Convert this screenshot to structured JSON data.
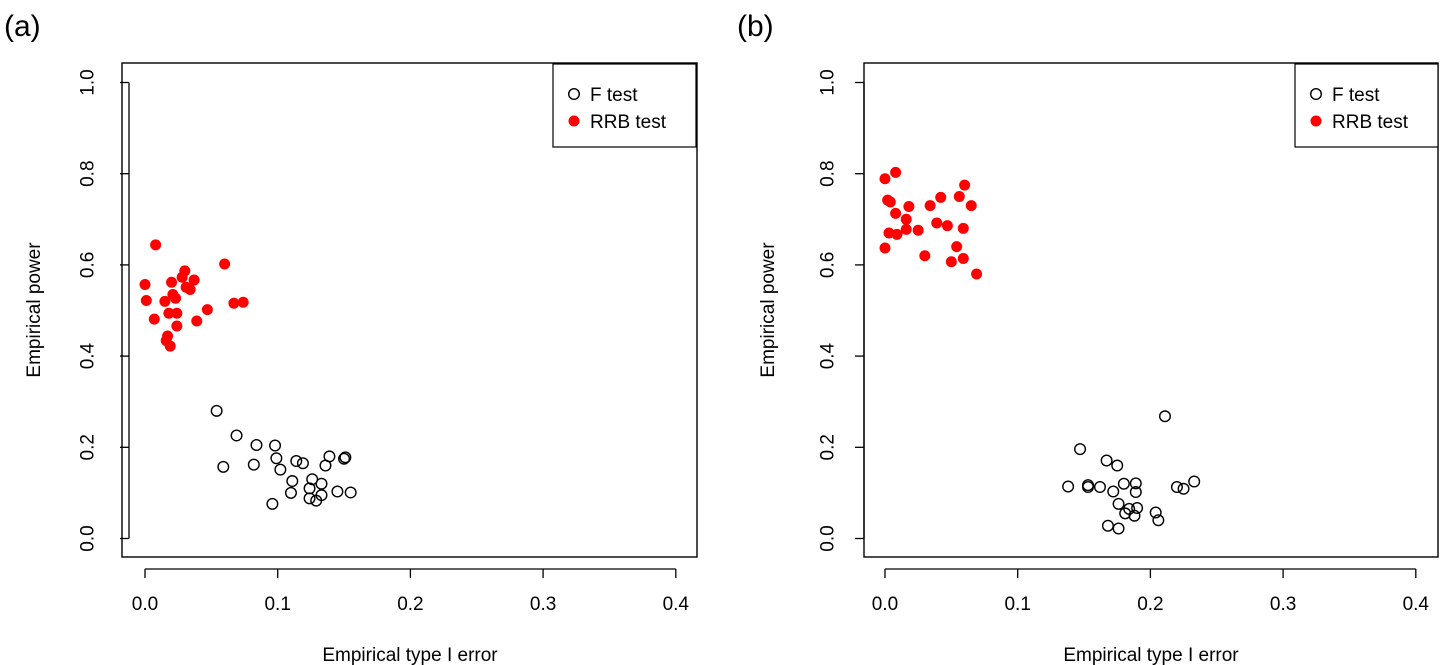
{
  "chart_data": [
    {
      "type": "scatter",
      "panel_label": "(a)",
      "xlabel": "Empirical type I error",
      "ylabel": "Empirical power",
      "xlim": [
        0.0,
        0.4
      ],
      "ylim": [
        0.0,
        1.0
      ],
      "xticks": [
        "0.0",
        "0.1",
        "0.2",
        "0.3",
        "0.4"
      ],
      "yticks": [
        "0.0",
        "0.2",
        "0.4",
        "0.6",
        "0.8",
        "1.0"
      ],
      "grid": false,
      "legend_position": "top-right",
      "series": [
        {
          "name": "F test",
          "marker": "open-circle",
          "color": "#000000",
          "points": [
            [
              0.054,
              0.28
            ],
            [
              0.069,
              0.226
            ],
            [
              0.084,
              0.205
            ],
            [
              0.098,
              0.204
            ],
            [
              0.059,
              0.157
            ],
            [
              0.082,
              0.162
            ],
            [
              0.099,
              0.176
            ],
            [
              0.114,
              0.17
            ],
            [
              0.119,
              0.165
            ],
            [
              0.139,
              0.18
            ],
            [
              0.15,
              0.175
            ],
            [
              0.151,
              0.178
            ],
            [
              0.136,
              0.16
            ],
            [
              0.102,
              0.151
            ],
            [
              0.111,
              0.126
            ],
            [
              0.126,
              0.13
            ],
            [
              0.133,
              0.12
            ],
            [
              0.124,
              0.11
            ],
            [
              0.11,
              0.1
            ],
            [
              0.145,
              0.103
            ],
            [
              0.155,
              0.101
            ],
            [
              0.133,
              0.095
            ],
            [
              0.124,
              0.088
            ],
            [
              0.129,
              0.083
            ],
            [
              0.096,
              0.076
            ]
          ]
        },
        {
          "name": "RRB test",
          "marker": "filled-circle",
          "color": "#ff0000",
          "points": [
            [
              0.008,
              0.644
            ],
            [
              0.06,
              0.602
            ],
            [
              0.03,
              0.587
            ],
            [
              0.028,
              0.573
            ],
            [
              0.037,
              0.567
            ],
            [
              0.02,
              0.562
            ],
            [
              0.0,
              0.557
            ],
            [
              0.031,
              0.551
            ],
            [
              0.034,
              0.546
            ],
            [
              0.021,
              0.535
            ],
            [
              0.023,
              0.527
            ],
            [
              0.001,
              0.522
            ],
            [
              0.015,
              0.52
            ],
            [
              0.067,
              0.516
            ],
            [
              0.074,
              0.518
            ],
            [
              0.047,
              0.502
            ],
            [
              0.018,
              0.494
            ],
            [
              0.024,
              0.494
            ],
            [
              0.007,
              0.481
            ],
            [
              0.039,
              0.477
            ],
            [
              0.024,
              0.466
            ],
            [
              0.017,
              0.444
            ],
            [
              0.016,
              0.434
            ],
            [
              0.019,
              0.422
            ]
          ]
        }
      ]
    },
    {
      "type": "scatter",
      "panel_label": "(b)",
      "xlabel": "Empirical type I error",
      "ylabel": "Empirical power",
      "xlim": [
        0.0,
        0.4
      ],
      "ylim": [
        0.0,
        1.0
      ],
      "xticks": [
        "0.0",
        "0.1",
        "0.2",
        "0.3",
        "0.4"
      ],
      "yticks": [
        "0.0",
        "0.2",
        "0.4",
        "0.6",
        "0.8",
        "1.0"
      ],
      "grid": false,
      "legend_position": "top-right",
      "series": [
        {
          "name": "F test",
          "marker": "open-circle",
          "color": "#000000",
          "points": [
            [
              0.211,
              0.268
            ],
            [
              0.147,
              0.196
            ],
            [
              0.167,
              0.171
            ],
            [
              0.175,
              0.16
            ],
            [
              0.233,
              0.125
            ],
            [
              0.189,
              0.121
            ],
            [
              0.18,
              0.12
            ],
            [
              0.22,
              0.113
            ],
            [
              0.225,
              0.109
            ],
            [
              0.138,
              0.114
            ],
            [
              0.153,
              0.117
            ],
            [
              0.153,
              0.113
            ],
            [
              0.162,
              0.113
            ],
            [
              0.172,
              0.103
            ],
            [
              0.189,
              0.102
            ],
            [
              0.176,
              0.076
            ],
            [
              0.19,
              0.067
            ],
            [
              0.184,
              0.065
            ],
            [
              0.181,
              0.055
            ],
            [
              0.188,
              0.05
            ],
            [
              0.204,
              0.057
            ],
            [
              0.206,
              0.04
            ],
            [
              0.168,
              0.028
            ],
            [
              0.176,
              0.022
            ]
          ]
        },
        {
          "name": "RRB test",
          "marker": "filled-circle",
          "color": "#ff0000",
          "points": [
            [
              0.008,
              0.803
            ],
            [
              0.0,
              0.789
            ],
            [
              0.06,
              0.775
            ],
            [
              0.056,
              0.75
            ],
            [
              0.042,
              0.748
            ],
            [
              0.002,
              0.742
            ],
            [
              0.004,
              0.738
            ],
            [
              0.034,
              0.73
            ],
            [
              0.065,
              0.73
            ],
            [
              0.018,
              0.728
            ],
            [
              0.008,
              0.713
            ],
            [
              0.016,
              0.7
            ],
            [
              0.039,
              0.692
            ],
            [
              0.047,
              0.686
            ],
            [
              0.059,
              0.68
            ],
            [
              0.016,
              0.678
            ],
            [
              0.025,
              0.676
            ],
            [
              0.003,
              0.67
            ],
            [
              0.009,
              0.667
            ],
            [
              0.054,
              0.64
            ],
            [
              0.0,
              0.637
            ],
            [
              0.03,
              0.62
            ],
            [
              0.059,
              0.614
            ],
            [
              0.05,
              0.607
            ],
            [
              0.069,
              0.58
            ]
          ]
        }
      ]
    }
  ]
}
